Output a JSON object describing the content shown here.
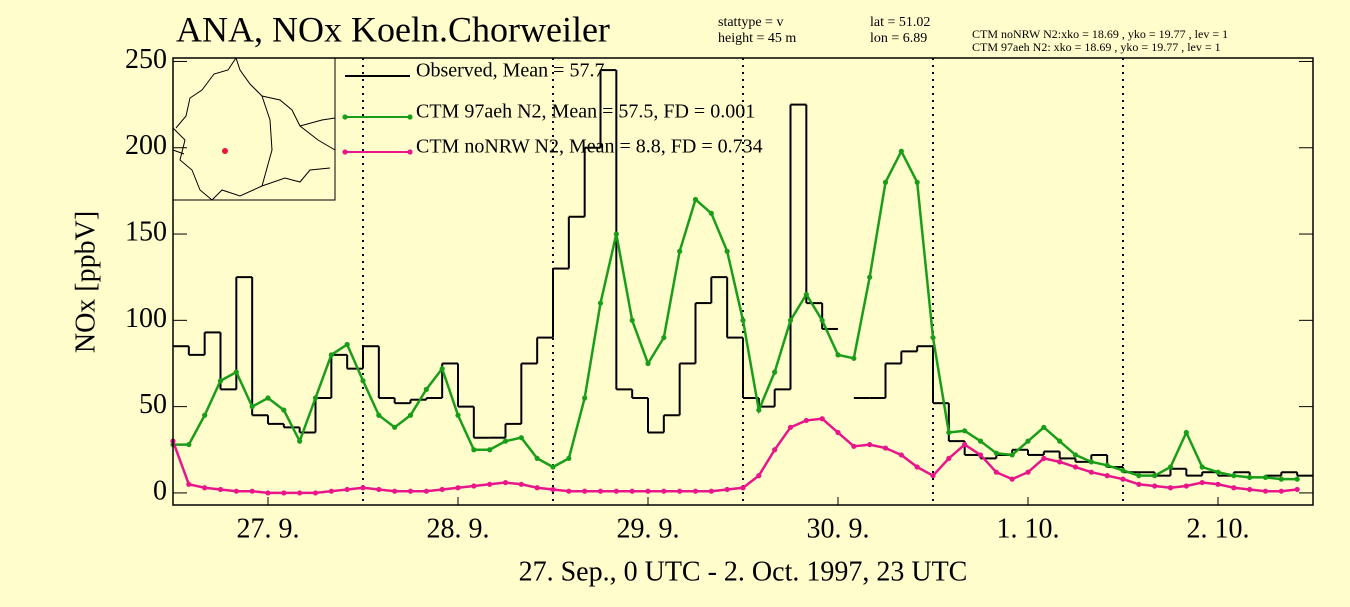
{
  "chart_data": {
    "type": "line",
    "title": "ANA, NOx  Koeln.Chorweiler",
    "annotations": [
      "stattype = v",
      "height = 45 m",
      "lat = 51.02",
      "lon = 6.89",
      "CTM noNRW N2:xko = 18.69 , yko = 19.77 , lev = 1",
      "CTM 97aeh N2:   xko = 18.69 , yko = 19.77 , lev = 1"
    ],
    "ylabel": "NOx [ppbV]",
    "xlabel": "27. Sep., 0 UTC -  2. Oct. 1997, 23 UTC",
    "xlim": [
      0,
      144
    ],
    "ylim": [
      -7,
      252
    ],
    "yticks": [
      0,
      50,
      100,
      150,
      200,
      250
    ],
    "xticks": [
      {
        "value": 12,
        "label": "27. 9."
      },
      {
        "value": 36,
        "label": "28. 9."
      },
      {
        "value": 60,
        "label": "29. 9."
      },
      {
        "value": 84,
        "label": "30. 9."
      },
      {
        "value": 108,
        "label": "1. 10."
      },
      {
        "value": 132,
        "label": "2. 10."
      }
    ],
    "day_lines": [
      24,
      48,
      72,
      96,
      120
    ],
    "x": [
      0,
      2,
      4,
      6,
      8,
      10,
      12,
      14,
      16,
      18,
      20,
      22,
      24,
      26,
      28,
      30,
      32,
      34,
      36,
      38,
      40,
      42,
      44,
      46,
      48,
      50,
      52,
      54,
      56,
      58,
      60,
      62,
      64,
      66,
      68,
      70,
      72,
      74,
      76,
      78,
      80,
      82,
      84,
      86,
      88,
      90,
      92,
      94,
      96,
      98,
      100,
      102,
      104,
      106,
      108,
      110,
      112,
      114,
      116,
      118,
      120,
      122,
      124,
      126,
      128,
      130,
      132,
      134,
      136,
      138,
      140,
      142
    ],
    "series": [
      {
        "name": "Observed, Mean = 57.7",
        "color": "#000000",
        "style": "step",
        "values": [
          85,
          80,
          93,
          60,
          125,
          45,
          40,
          38,
          35,
          55,
          80,
          72,
          85,
          55,
          52,
          54,
          55,
          75,
          50,
          32,
          32,
          40,
          75,
          90,
          130,
          160,
          200,
          245,
          60,
          55,
          35,
          45,
          75,
          110,
          125,
          90,
          55,
          50,
          60,
          225,
          110,
          95,
          null,
          55,
          55,
          75,
          82,
          85,
          52,
          30,
          22,
          20,
          22,
          25,
          22,
          24,
          20,
          18,
          22,
          15,
          12,
          12,
          10,
          14,
          10,
          12,
          10,
          12,
          9,
          10,
          12,
          10
        ]
      },
      {
        "name": "CTM 97aeh N2, Mean = 57.5, FD =  0.001",
        "color": "#1a9e1a",
        "style": "dots",
        "values": [
          28,
          28,
          45,
          65,
          70,
          50,
          55,
          48,
          30,
          55,
          80,
          86,
          65,
          45,
          38,
          45,
          60,
          72,
          45,
          25,
          25,
          30,
          32,
          20,
          15,
          20,
          55,
          110,
          150,
          100,
          75,
          90,
          140,
          170,
          162,
          140,
          100,
          48,
          70,
          100,
          115,
          100,
          80,
          78,
          125,
          180,
          198,
          180,
          90,
          35,
          36,
          30,
          23,
          22,
          30,
          38,
          30,
          22,
          18,
          16,
          13,
          10,
          10,
          15,
          35,
          15,
          12,
          10,
          9,
          9,
          8,
          8
        ]
      },
      {
        "name": "CTM noNRW N2, Mean = 8.8, FD =  0.734",
        "color": "#e8168a",
        "style": "dots",
        "values": [
          30,
          5,
          3,
          2,
          1,
          1,
          0,
          0,
          0,
          0,
          1,
          2,
          3,
          2,
          1,
          1,
          1,
          2,
          3,
          4,
          5,
          6,
          5,
          3,
          2,
          1,
          1,
          1,
          1,
          1,
          1,
          1,
          1,
          1,
          1,
          2,
          3,
          10,
          25,
          38,
          42,
          43,
          35,
          27,
          28,
          26,
          22,
          15,
          10,
          20,
          28,
          22,
          12,
          8,
          12,
          20,
          18,
          15,
          12,
          10,
          8,
          5,
          4,
          3,
          4,
          6,
          5,
          3,
          2,
          1,
          1,
          2
        ]
      }
    ]
  }
}
